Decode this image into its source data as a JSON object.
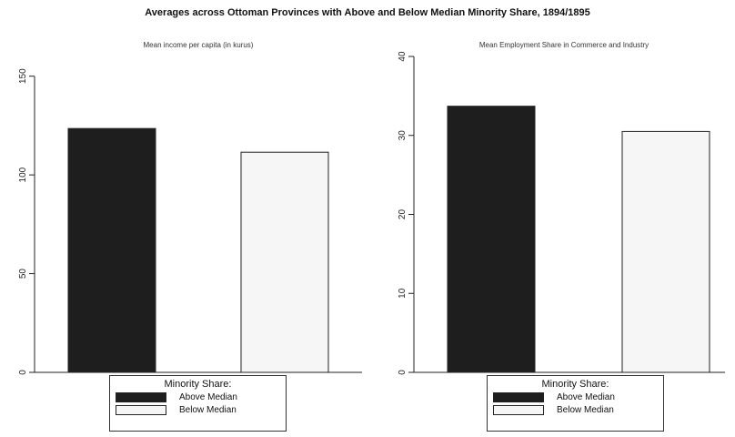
{
  "figure": {
    "title": "Averages across Ottoman Provinces with Above and Below Median Minority Share, 1894/1895"
  },
  "legend": {
    "title": "Minority Share:",
    "entries": [
      {
        "label": "Above Median",
        "color": "#1e1e1e"
      },
      {
        "label": "Below Median",
        "color": "#f6f6f6"
      }
    ]
  },
  "chart_data": [
    {
      "type": "bar",
      "title": "Mean income per capita (in kurus)",
      "categories": [
        "Above Median",
        "Below Median"
      ],
      "values": [
        123.5,
        111.5
      ],
      "ylim": [
        0,
        160
      ],
      "yticks": [
        0,
        50,
        100,
        150
      ],
      "colors": [
        "#1e1e1e",
        "#f6f6f6"
      ],
      "xlabel": "",
      "ylabel": ""
    },
    {
      "type": "bar",
      "title": "Mean Employment Share in Commerce and Industry",
      "categories": [
        "Above Median",
        "Below Median"
      ],
      "values": [
        33.7,
        30.5
      ],
      "ylim": [
        0,
        40
      ],
      "yticks": [
        0,
        10,
        20,
        30,
        40
      ],
      "colors": [
        "#1e1e1e",
        "#f6f6f6"
      ],
      "xlabel": "",
      "ylabel": ""
    }
  ]
}
